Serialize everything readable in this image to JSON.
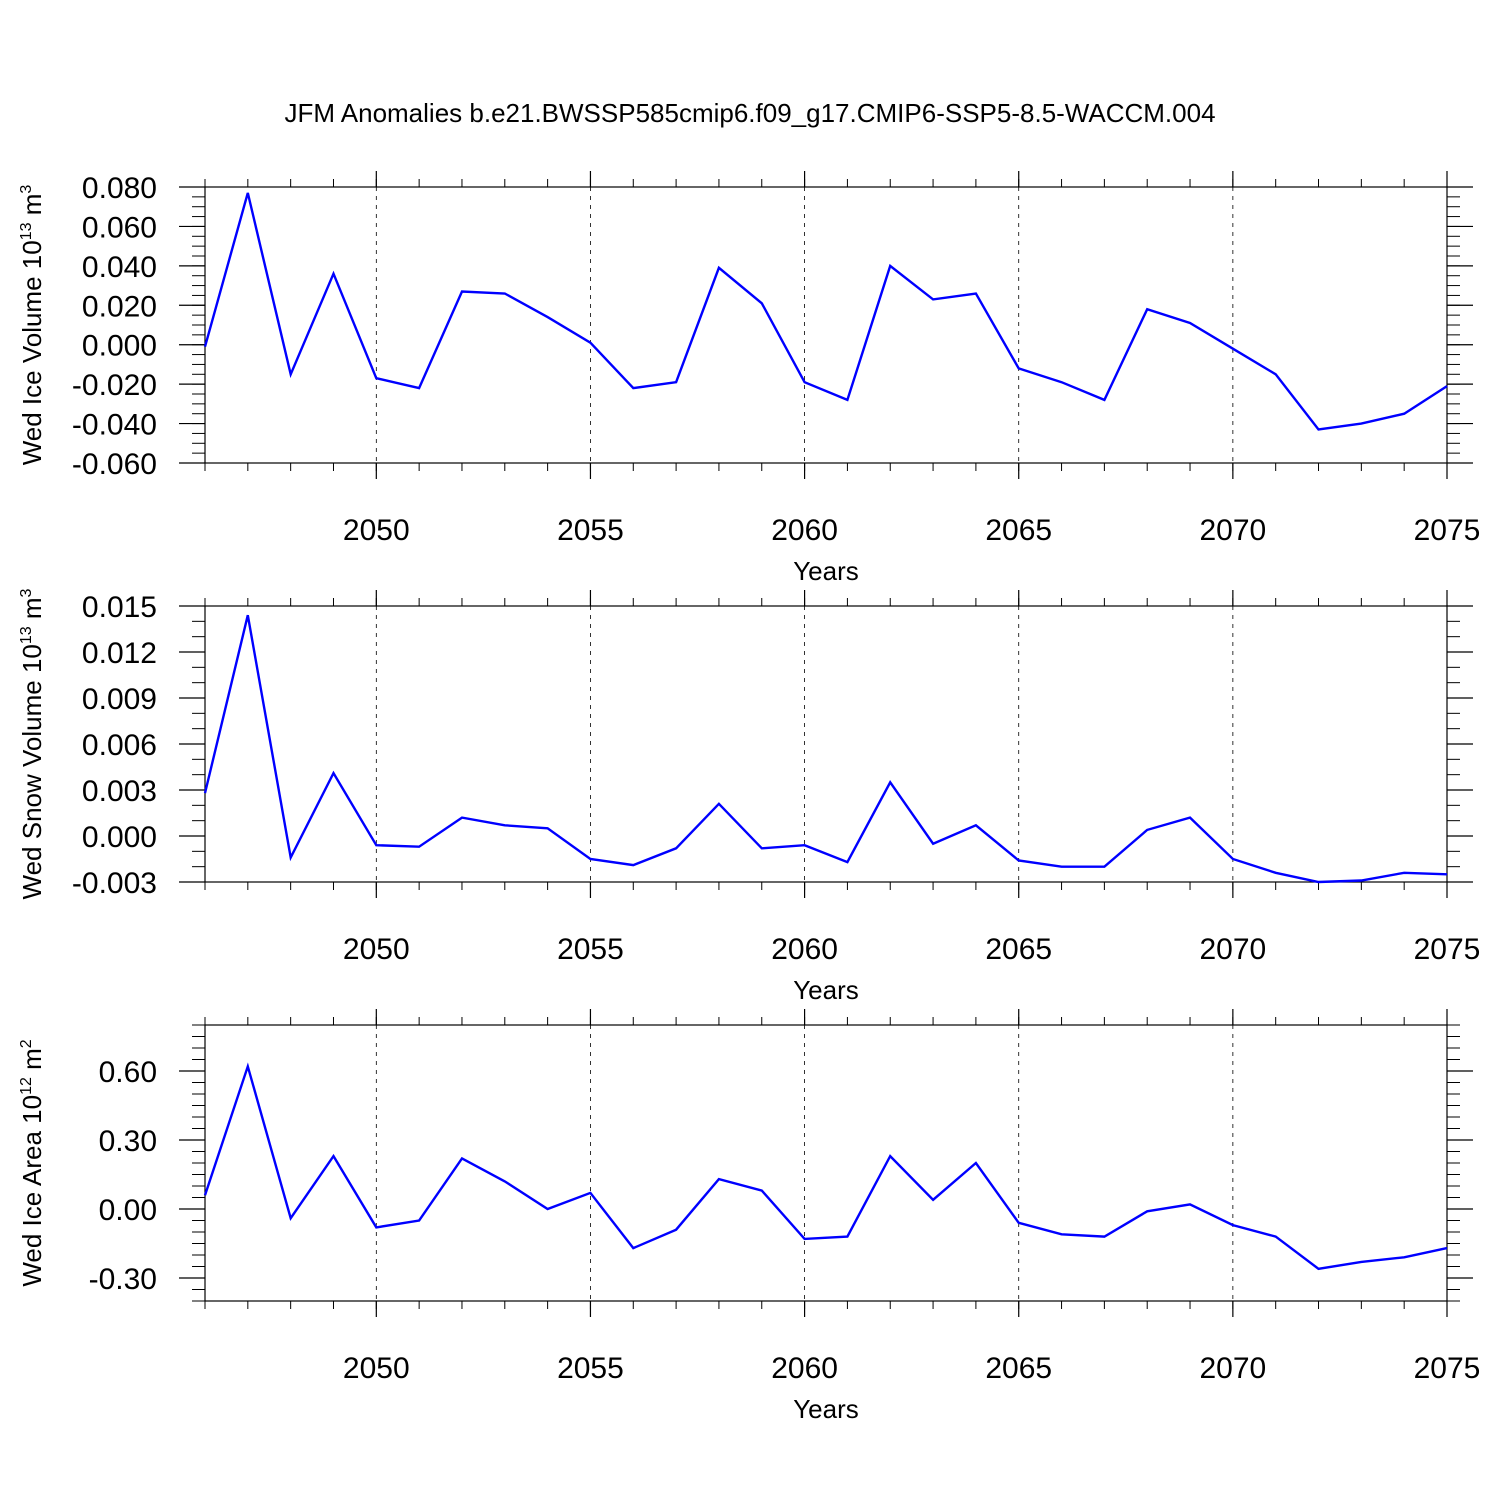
{
  "title": "JFM Anomalies b.e21.BWSSP585cmip6.f09_g17.CMIP6-SSP5-8.5-WACCM.004",
  "line_color": "#0000ff",
  "chart_data": [
    {
      "type": "line",
      "ylabel_main": "Wed Ice Volume 10",
      "ylabel_exp": "13",
      "ylabel_unit": " m",
      "ylabel_unit_exp": "3",
      "xlabel": "Years",
      "xlim": [
        2046,
        2075
      ],
      "ylim": [
        -0.06,
        0.08
      ],
      "grid_x": "dashed",
      "x_ticks": [
        2050,
        2055,
        2060,
        2065,
        2070,
        2075
      ],
      "x_tick_labels": [
        "2050",
        "2055",
        "2060",
        "2065",
        "2070",
        "2075"
      ],
      "y_ticks": [
        -0.06,
        -0.04,
        -0.02,
        0.0,
        0.02,
        0.04,
        0.06,
        0.08
      ],
      "y_tick_labels": [
        "-0.060",
        "-0.040",
        "-0.020",
        "0.000",
        "0.020",
        "0.040",
        "0.060",
        "0.080"
      ],
      "y_minor_step": 0.005,
      "x": [
        2046,
        2047,
        2048,
        2049,
        2050,
        2051,
        2052,
        2053,
        2054,
        2055,
        2056,
        2057,
        2058,
        2059,
        2060,
        2061,
        2062,
        2063,
        2064,
        2065,
        2066,
        2067,
        2068,
        2069,
        2070,
        2071,
        2072,
        2073,
        2074,
        2075
      ],
      "values": [
        -0.001,
        0.077,
        -0.015,
        0.036,
        -0.017,
        -0.022,
        0.027,
        0.026,
        0.014,
        0.001,
        -0.022,
        -0.019,
        0.039,
        0.021,
        -0.019,
        -0.028,
        0.04,
        0.023,
        0.026,
        -0.012,
        -0.019,
        -0.028,
        0.018,
        0.011,
        -0.002,
        -0.015,
        -0.043,
        -0.04,
        -0.035,
        -0.021
      ]
    },
    {
      "type": "line",
      "ylabel_main": "Wed Snow Volume 10",
      "ylabel_exp": "13",
      "ylabel_unit": " m",
      "ylabel_unit_exp": "3",
      "xlabel": "Years",
      "xlim": [
        2046,
        2075
      ],
      "ylim": [
        -0.003,
        0.015
      ],
      "grid_x": "dashed",
      "x_ticks": [
        2050,
        2055,
        2060,
        2065,
        2070,
        2075
      ],
      "x_tick_labels": [
        "2050",
        "2055",
        "2060",
        "2065",
        "2070",
        "2075"
      ],
      "y_ticks": [
        -0.003,
        0.0,
        0.003,
        0.006,
        0.009,
        0.012,
        0.015
      ],
      "y_tick_labels": [
        "-0.003",
        "0.000",
        "0.003",
        "0.006",
        "0.009",
        "0.012",
        "0.015"
      ],
      "y_minor_step": 0.001,
      "x": [
        2046,
        2047,
        2048,
        2049,
        2050,
        2051,
        2052,
        2053,
        2054,
        2055,
        2056,
        2057,
        2058,
        2059,
        2060,
        2061,
        2062,
        2063,
        2064,
        2065,
        2066,
        2067,
        2068,
        2069,
        2070,
        2071,
        2072,
        2073,
        2074,
        2075
      ],
      "values": [
        0.0028,
        0.0144,
        -0.0014,
        0.0041,
        -0.0006,
        -0.0007,
        0.0012,
        0.0007,
        0.0005,
        -0.0015,
        -0.0019,
        -0.0008,
        0.0021,
        -0.0008,
        -0.0006,
        -0.0017,
        0.0035,
        -0.0005,
        0.0007,
        -0.0016,
        -0.002,
        -0.002,
        0.0004,
        0.0012,
        -0.0015,
        -0.0024,
        -0.003,
        -0.0029,
        -0.0024,
        -0.0025
      ]
    },
    {
      "type": "line",
      "ylabel_main": "Wed Ice Area 10",
      "ylabel_exp": "12",
      "ylabel_unit": " m",
      "ylabel_unit_exp": "2",
      "xlabel": "Years",
      "xlim": [
        2046,
        2075
      ],
      "ylim": [
        -0.4,
        0.8
      ],
      "grid_x": "dashed",
      "x_ticks": [
        2050,
        2055,
        2060,
        2065,
        2070,
        2075
      ],
      "x_tick_labels": [
        "2050",
        "2055",
        "2060",
        "2065",
        "2070",
        "2075"
      ],
      "y_ticks": [
        -0.3,
        0.0,
        0.3,
        0.6
      ],
      "y_tick_labels": [
        "-0.30",
        "0.00",
        "0.30",
        "0.60"
      ],
      "y_minor_step": 0.05,
      "x": [
        2046,
        2047,
        2048,
        2049,
        2050,
        2051,
        2052,
        2053,
        2054,
        2055,
        2056,
        2057,
        2058,
        2059,
        2060,
        2061,
        2062,
        2063,
        2064,
        2065,
        2066,
        2067,
        2068,
        2069,
        2070,
        2071,
        2072,
        2073,
        2074,
        2075
      ],
      "values": [
        0.06,
        0.62,
        -0.04,
        0.23,
        -0.08,
        -0.05,
        0.22,
        0.12,
        0.0,
        0.07,
        -0.17,
        -0.09,
        0.13,
        0.08,
        -0.13,
        -0.12,
        0.23,
        0.04,
        0.2,
        -0.06,
        -0.11,
        -0.12,
        -0.01,
        0.02,
        -0.07,
        -0.12,
        -0.26,
        -0.23,
        -0.21,
        -0.17
      ]
    }
  ]
}
